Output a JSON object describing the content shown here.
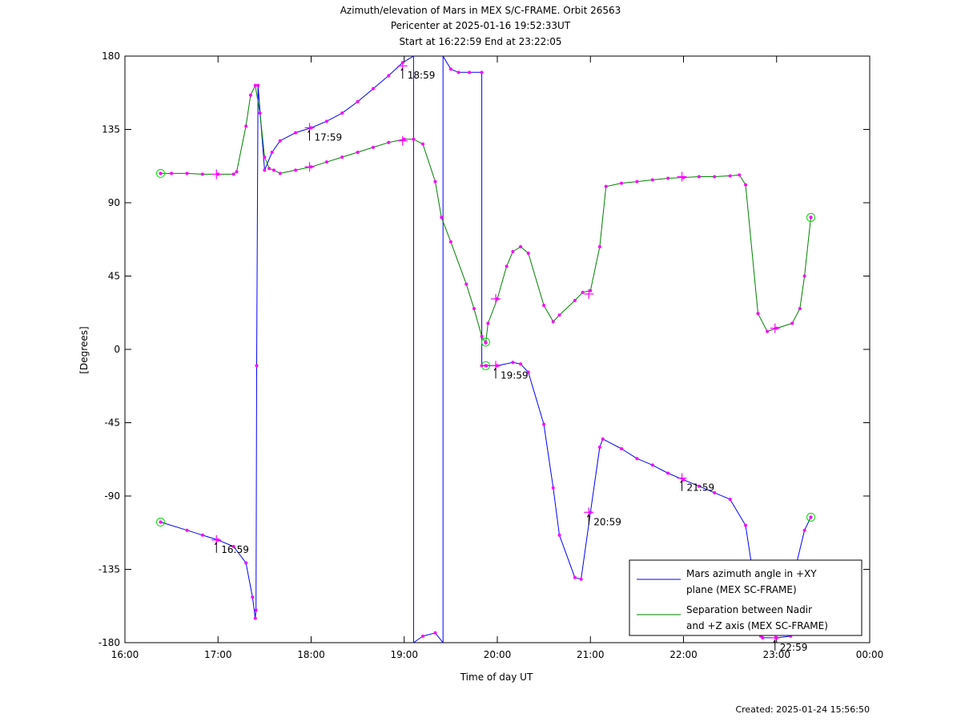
{
  "chart_data": {
    "type": "line",
    "title_lines": [
      "Azimuth/elevation of Mars in MEX S/C-FRAME.  Orbit 26563",
      "Pericenter at 2025-01-16 19:52:33UT",
      "Start at 16:22:59 End at 23:22:05"
    ],
    "xlabel": "Time of day UT",
    "ylabel": "[Degrees]",
    "footer": "Created: 2025-01-24 15:56:50",
    "xlim": [
      16.0,
      24.0
    ],
    "ylim": [
      -180,
      180
    ],
    "x_ticks": [
      16,
      17,
      18,
      19,
      20,
      21,
      22,
      23,
      24
    ],
    "x_tick_labels": [
      "16:00",
      "17:00",
      "18:00",
      "19:00",
      "20:00",
      "21:00",
      "22:00",
      "23:00",
      "00:00"
    ],
    "y_ticks": [
      180,
      135,
      90,
      45,
      0,
      -45,
      -90,
      -135,
      -180
    ],
    "y_tick_labels": [
      "180",
      "135",
      "90",
      "45",
      "0",
      "-45",
      "-90",
      "-135",
      "-180"
    ],
    "grid": false,
    "legend_position": "bottom-right",
    "series": [
      {
        "name": "Mars azimuth angle in +XY plane (MEX SC-FRAME)",
        "legend_lines": [
          "Mars azimuth angle in +XY",
          "plane (MEX SC-FRAME)"
        ],
        "color": "#0000ff",
        "x": [
          16.383,
          16.667,
          16.833,
          17.0,
          17.167,
          17.3,
          17.37,
          17.4,
          17.408,
          17.415,
          17.43,
          17.5,
          17.58,
          17.667,
          17.833,
          18.0,
          18.167,
          18.333,
          18.5,
          18.667,
          18.833,
          18.983,
          19.1,
          19.1,
          19.2,
          19.333,
          19.417,
          19.417,
          19.5,
          19.583,
          19.7,
          19.833,
          19.833,
          19.883,
          20.0,
          20.167,
          20.25,
          20.333,
          20.5,
          20.6,
          20.667,
          20.833,
          20.9,
          21.0,
          21.1,
          21.133,
          21.333,
          21.5,
          21.667,
          21.833,
          22.0,
          22.167,
          22.333,
          22.5,
          22.667,
          22.8,
          22.83,
          22.85,
          23.0,
          23.15,
          23.2,
          23.22,
          23.3,
          23.368
        ],
        "y": [
          -106,
          -111,
          -114,
          -117,
          -121,
          -131,
          -152,
          -165,
          -160,
          -10,
          162,
          110,
          121,
          128,
          133,
          136,
          140,
          145,
          152,
          160,
          168,
          176,
          180,
          -180,
          -176,
          -174,
          -180,
          180,
          172,
          170,
          170,
          170,
          -10,
          -10,
          -10,
          -8,
          -9,
          -14,
          -46,
          -85,
          -114,
          -140,
          -141,
          -100,
          -60,
          -55,
          -61,
          -67,
          -71,
          -76,
          -80,
          -84,
          -88,
          -92,
          -108,
          -158,
          -176,
          -177,
          -177,
          -176,
          -150,
          -130,
          -111,
          -103
        ]
      },
      {
        "name": "Separation between Nadir and +Z axis (MEX SC-FRAME)",
        "legend_lines": [
          "Separation between Nadir",
          "and +Z axis (MEX SC-FRAME)"
        ],
        "color": "#008000",
        "x": [
          16.383,
          16.5,
          16.667,
          16.833,
          17.0,
          17.167,
          17.2,
          17.3,
          17.35,
          17.4,
          17.45,
          17.5,
          17.55,
          17.6,
          17.667,
          17.833,
          18.0,
          18.167,
          18.333,
          18.5,
          18.667,
          18.833,
          19.0,
          19.1,
          19.2,
          19.333,
          19.4,
          19.5,
          19.667,
          19.75,
          19.833,
          19.875,
          19.9,
          20.0,
          20.1,
          20.167,
          20.25,
          20.333,
          20.5,
          20.6,
          20.667,
          20.833,
          20.917,
          21.0,
          21.1,
          21.167,
          21.333,
          21.5,
          21.667,
          21.833,
          22.0,
          22.167,
          22.333,
          22.5,
          22.6,
          22.667,
          22.8,
          22.9,
          23.0,
          23.167,
          23.25,
          23.3,
          23.368
        ],
        "y": [
          108,
          108,
          108,
          107.5,
          107.5,
          107.5,
          109,
          137,
          156,
          162,
          145,
          118,
          111,
          110,
          108,
          110,
          112,
          115,
          118,
          121,
          124,
          127,
          129,
          129,
          126,
          103,
          81,
          66,
          40,
          25,
          8,
          4,
          16,
          31,
          51,
          60,
          63,
          59,
          27,
          17,
          21,
          30,
          35,
          36,
          63,
          100,
          102,
          103,
          104,
          105,
          105.5,
          106,
          106,
          106.5,
          107,
          101,
          22,
          11,
          13,
          16,
          25,
          45,
          81
        ]
      }
    ],
    "hour_markers": [
      {
        "label": "16:59",
        "x": 16.983,
        "y": -117
      },
      {
        "label": "17:59",
        "x": 17.983,
        "y": 136
      },
      {
        "label": "18:59",
        "x": 18.983,
        "y": 174
      },
      {
        "label": "19:59",
        "x": 19.983,
        "y": -10
      },
      {
        "label": "20:59",
        "x": 20.983,
        "y": -100
      },
      {
        "label": "21:59",
        "x": 21.983,
        "y": -79
      },
      {
        "label": "22:59",
        "x": 22.983,
        "y": -177
      }
    ],
    "plus_markers_green": [
      {
        "x": 16.983,
        "y": 107.5
      },
      {
        "x": 17.983,
        "y": 112
      },
      {
        "x": 18.983,
        "y": 128
      },
      {
        "x": 19.983,
        "y": 31
      },
      {
        "x": 20.983,
        "y": 34
      },
      {
        "x": 21.983,
        "y": 106
      },
      {
        "x": 22.983,
        "y": 13
      }
    ],
    "start_end_circles": [
      {
        "x": 16.383,
        "y": -106
      },
      {
        "x": 16.383,
        "y": 108
      },
      {
        "x": 19.875,
        "y": -10
      },
      {
        "x": 19.875,
        "y": 4.5
      },
      {
        "x": 23.368,
        "y": -103
      },
      {
        "x": 23.368,
        "y": 81
      }
    ]
  }
}
